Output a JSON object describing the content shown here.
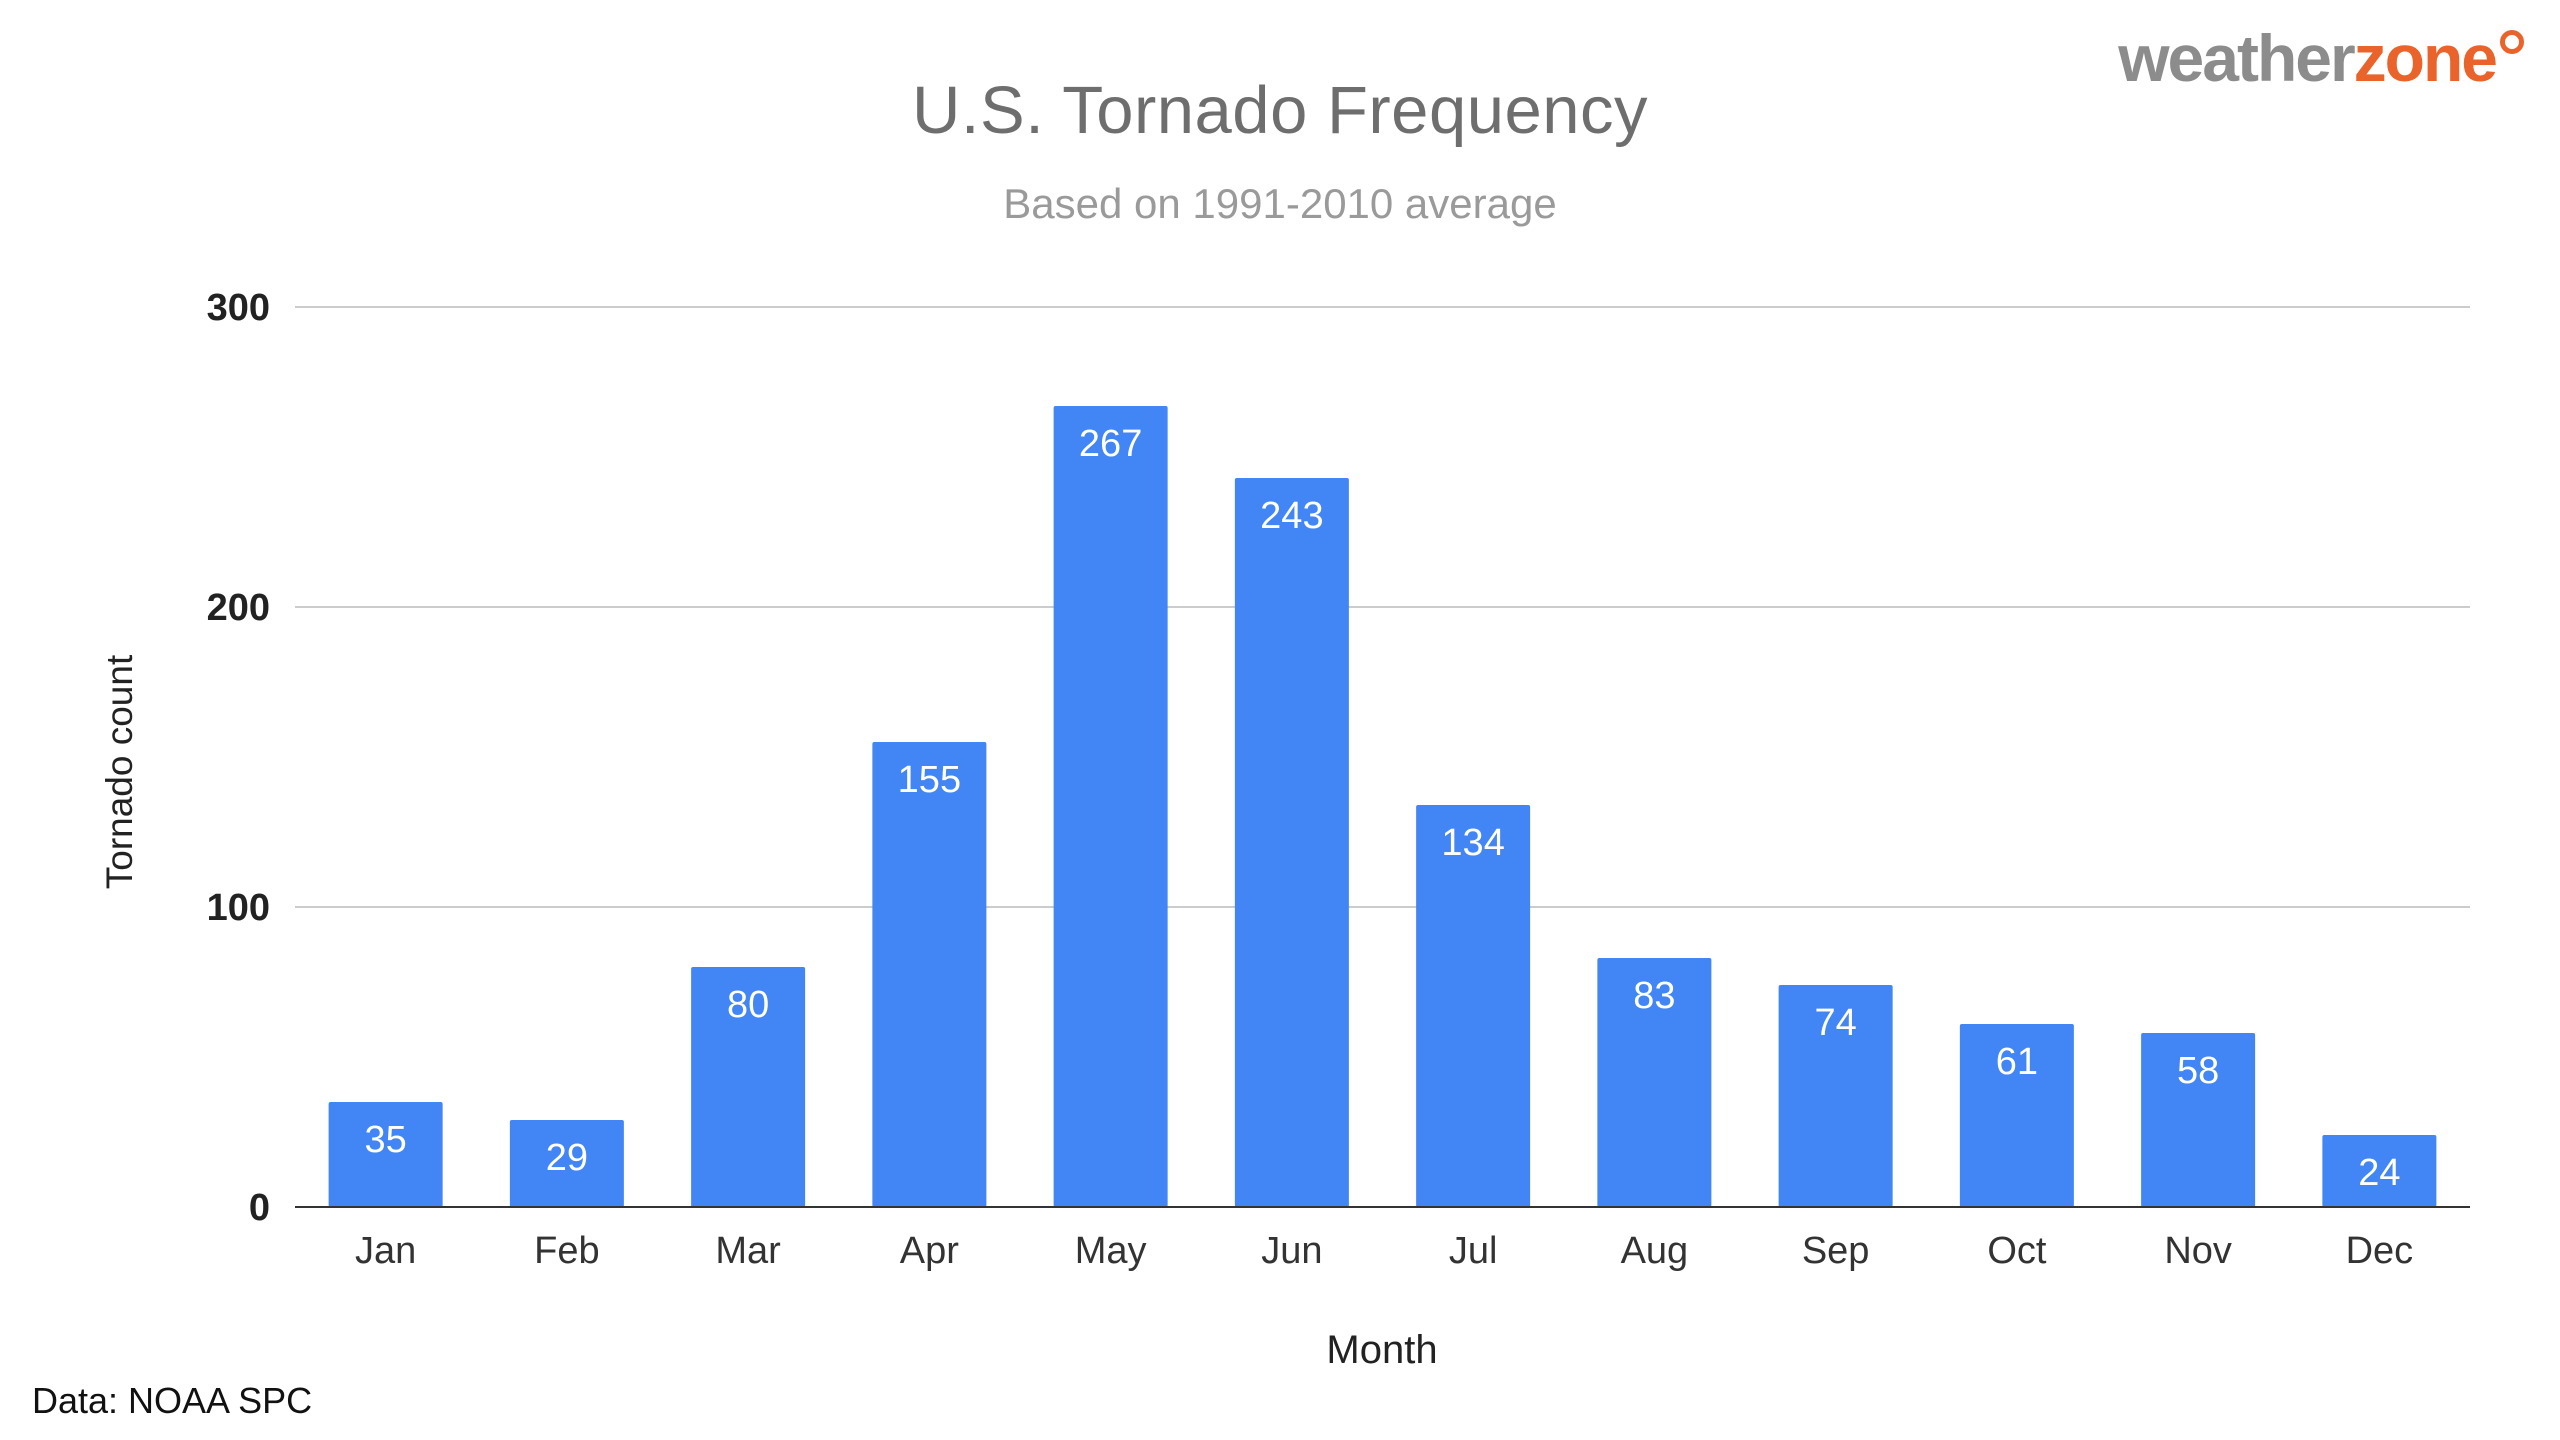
{
  "chart_data": {
    "type": "bar",
    "title": "U.S. Tornado Frequency",
    "subtitle": "Based on 1991-2010 average",
    "xlabel": "Month",
    "ylabel": "Tornado count",
    "categories": [
      "Jan",
      "Feb",
      "Mar",
      "Apr",
      "May",
      "Jun",
      "Jul",
      "Aug",
      "Sep",
      "Oct",
      "Nov",
      "Dec"
    ],
    "values": [
      35,
      29,
      80,
      155,
      267,
      243,
      134,
      83,
      74,
      61,
      58,
      24
    ],
    "ylim": [
      0,
      300
    ],
    "yticks": [
      0,
      100,
      200,
      300
    ],
    "grid": true,
    "legend": "none",
    "bar_color": "#4285f4",
    "data_label_color": "#ffffff"
  },
  "branding": {
    "logo_part_a": "weather",
    "logo_part_b": "zone",
    "logo_color_a": "#8c8c8c",
    "logo_color_b": "#e9632a"
  },
  "source_note": "Data: NOAA SPC"
}
